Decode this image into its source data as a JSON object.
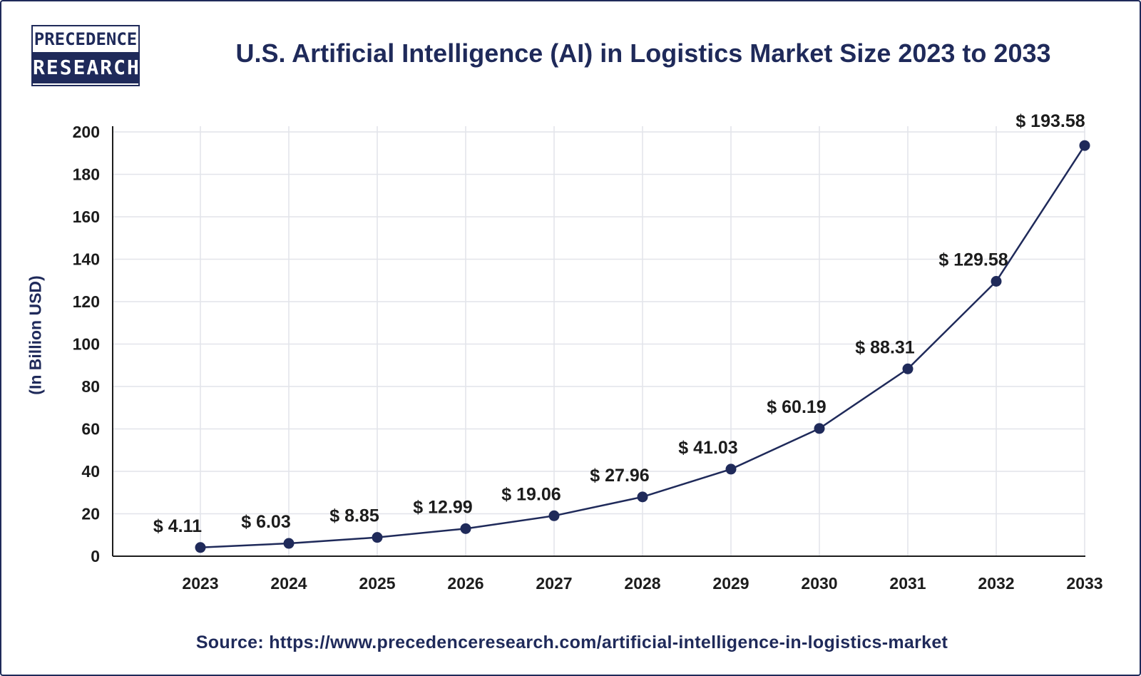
{
  "logo": {
    "line1": "PRECEDENCE",
    "line2": "RESEARCH"
  },
  "source": "Source: https://www.precedenceresearch.com/artificial-intelligence-in-logistics-market",
  "colors": {
    "primary": "#1f2a5a",
    "grid": "#e2e4ea",
    "axis": "#1c1c1c"
  },
  "chart_data": {
    "type": "line",
    "title": "U.S. Artificial Intelligence (AI) in Logistics Market Size 2023 to 2033",
    "xlabel": "",
    "ylabel": "(In Billion USD)",
    "categories": [
      "2023",
      "2024",
      "2025",
      "2026",
      "2027",
      "2028",
      "2029",
      "2030",
      "2031",
      "2032",
      "2033"
    ],
    "values": [
      4.11,
      6.03,
      8.85,
      12.99,
      19.06,
      27.96,
      41.03,
      60.19,
      88.31,
      129.58,
      193.58
    ],
    "data_labels": [
      "$ 4.11",
      "$ 6.03",
      "$ 8.85",
      "$ 12.99",
      "$ 19.06",
      "$ 27.96",
      "$ 41.03",
      "$ 60.19",
      "$ 88.31",
      "$ 129.58",
      "$ 193.58"
    ],
    "yticks": [
      0,
      20,
      40,
      60,
      80,
      100,
      120,
      140,
      160,
      180,
      200
    ],
    "ylim": [
      0,
      200
    ],
    "grid": true,
    "legend": "none"
  }
}
